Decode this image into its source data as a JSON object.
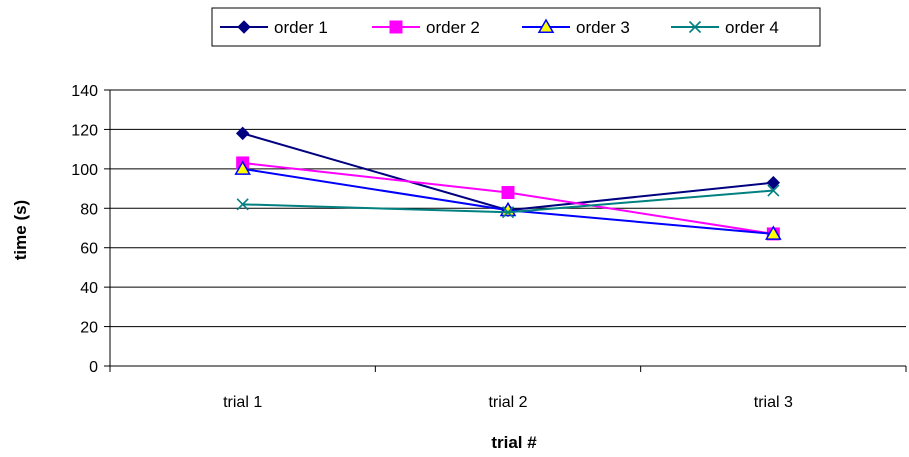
{
  "chart_data": {
    "type": "line",
    "title": "",
    "xlabel": "trial #",
    "ylabel": "time (s)",
    "categories": [
      "trial 1",
      "trial 2",
      "trial 3"
    ],
    "ylim": [
      0,
      140
    ],
    "yticks": [
      0,
      20,
      40,
      60,
      80,
      100,
      120,
      140
    ],
    "grid": true,
    "legend_position": "top",
    "series": [
      {
        "name": "order 1",
        "values": [
          118,
          79,
          93
        ],
        "color": "#000080",
        "marker": "diamond"
      },
      {
        "name": "order 2",
        "values": [
          103,
          88,
          67
        ],
        "color": "#FF00FF",
        "marker": "square"
      },
      {
        "name": "order 3",
        "values": [
          100,
          79,
          67
        ],
        "color": "#0000FF",
        "marker": "triangle",
        "marker_fill": "#FFFF00"
      },
      {
        "name": "order 4",
        "values": [
          82,
          78,
          89
        ],
        "color": "#008080",
        "marker": "x"
      }
    ]
  }
}
